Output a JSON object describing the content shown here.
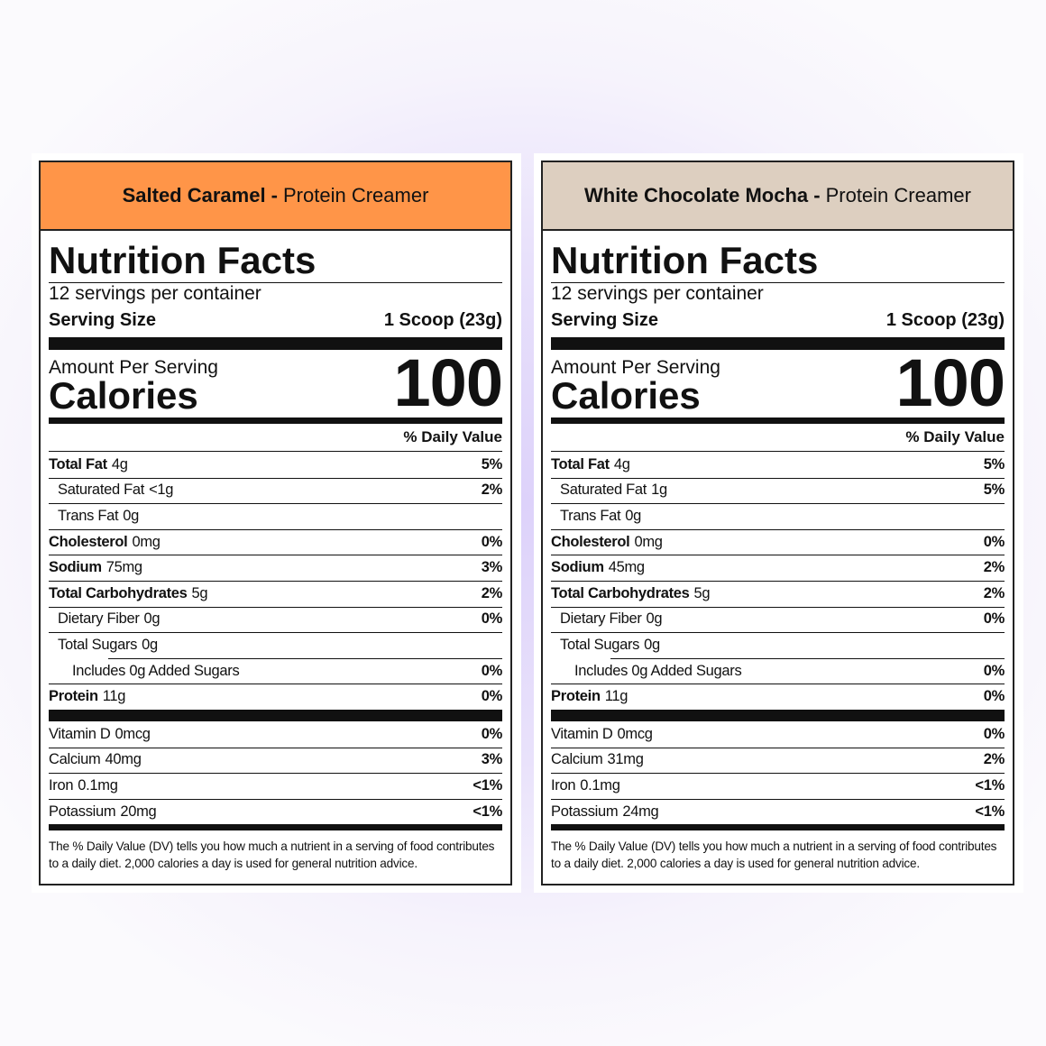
{
  "labels": [
    {
      "flavor": "Salted Caramel -",
      "product": "Protein Creamer",
      "header_color": "#ff9548",
      "title": "Nutrition Facts",
      "servings": "12 servings per container",
      "serving_size_label": "Serving Size",
      "serving_size": "1 Scoop (23g)",
      "amount_per_serving": "Amount Per Serving",
      "calories_label": "Calories",
      "calories": 100,
      "dv_header": "% Daily Value",
      "nutrients": [
        {
          "name": "Total Fat",
          "amount": "4g",
          "dv": "5%",
          "sub": [
            {
              "name": "Saturated Fat",
              "amount": "<1g",
              "dv": "2%"
            },
            {
              "name": "Trans Fat",
              "amount": "0g"
            }
          ]
        },
        {
          "name": "Cholesterol",
          "amount": "0mg",
          "dv": "0%"
        },
        {
          "name": "Sodium",
          "amount": "75mg",
          "dv": "3%"
        },
        {
          "name": "Total Carbohydrates",
          "amount": "5g",
          "dv": "2%",
          "sub": [
            {
              "name": "Dietary Fiber",
              "amount": "0g",
              "dv": "0%"
            },
            {
              "name": "Total Sugars",
              "amount": "0g",
              "sub": [
                {
                  "name": "Includes 0g Added Sugars",
                  "dv": "0%"
                }
              ]
            }
          ]
        },
        {
          "name": "Protein",
          "amount": "11g",
          "dv": "0%"
        }
      ],
      "vitamins": [
        {
          "name": "Vitamin D",
          "amount": "0mcg",
          "dv": "0%"
        },
        {
          "name": "Calcium",
          "amount": "40mg",
          "dv": "3%"
        },
        {
          "name": "Iron",
          "amount": "0.1mg",
          "dv": "<1%"
        },
        {
          "name": "Potassium",
          "amount": "20mg",
          "dv": "<1%"
        }
      ],
      "footnote": "The % Daily Value (DV) tells you how much a nutrient in a serving of food contributes to a daily diet. 2,000 calories a day is used for general nutrition advice."
    },
    {
      "flavor": "White Chocolate Mocha -",
      "product": "Protein Creamer",
      "header_color": "#ddcfc0",
      "title": "Nutrition Facts",
      "servings": "12 servings per container",
      "serving_size_label": "Serving Size",
      "serving_size": "1 Scoop (23g)",
      "amount_per_serving": "Amount Per Serving",
      "calories_label": "Calories",
      "calories": 100,
      "dv_header": "% Daily Value",
      "nutrients": [
        {
          "name": "Total Fat",
          "amount": "4g",
          "dv": "5%",
          "sub": [
            {
              "name": "Saturated Fat",
              "amount": "1g",
              "dv": "5%"
            },
            {
              "name": "Trans Fat",
              "amount": "0g"
            }
          ]
        },
        {
          "name": "Cholesterol",
          "amount": "0mg",
          "dv": "0%"
        },
        {
          "name": "Sodium",
          "amount": "45mg",
          "dv": "2%"
        },
        {
          "name": "Total Carbohydrates",
          "amount": "5g",
          "dv": "2%",
          "sub": [
            {
              "name": "Dietary Fiber",
              "amount": "0g",
              "dv": "0%"
            },
            {
              "name": "Total Sugars",
              "amount": "0g",
              "sub": [
                {
                  "name": "Includes 0g Added Sugars",
                  "dv": "0%"
                }
              ]
            }
          ]
        },
        {
          "name": "Protein",
          "amount": "11g",
          "dv": "0%"
        }
      ],
      "vitamins": [
        {
          "name": "Vitamin D",
          "amount": "0mcg",
          "dv": "0%"
        },
        {
          "name": "Calcium",
          "amount": "31mg",
          "dv": "2%"
        },
        {
          "name": "Iron",
          "amount": "0.1mg",
          "dv": "<1%"
        },
        {
          "name": "Potassium",
          "amount": "24mg",
          "dv": "<1%"
        }
      ],
      "footnote": "The % Daily Value (DV) tells you how much a nutrient in a serving of food contributes to a daily diet. 2,000 calories a day is used for general nutrition advice."
    }
  ]
}
